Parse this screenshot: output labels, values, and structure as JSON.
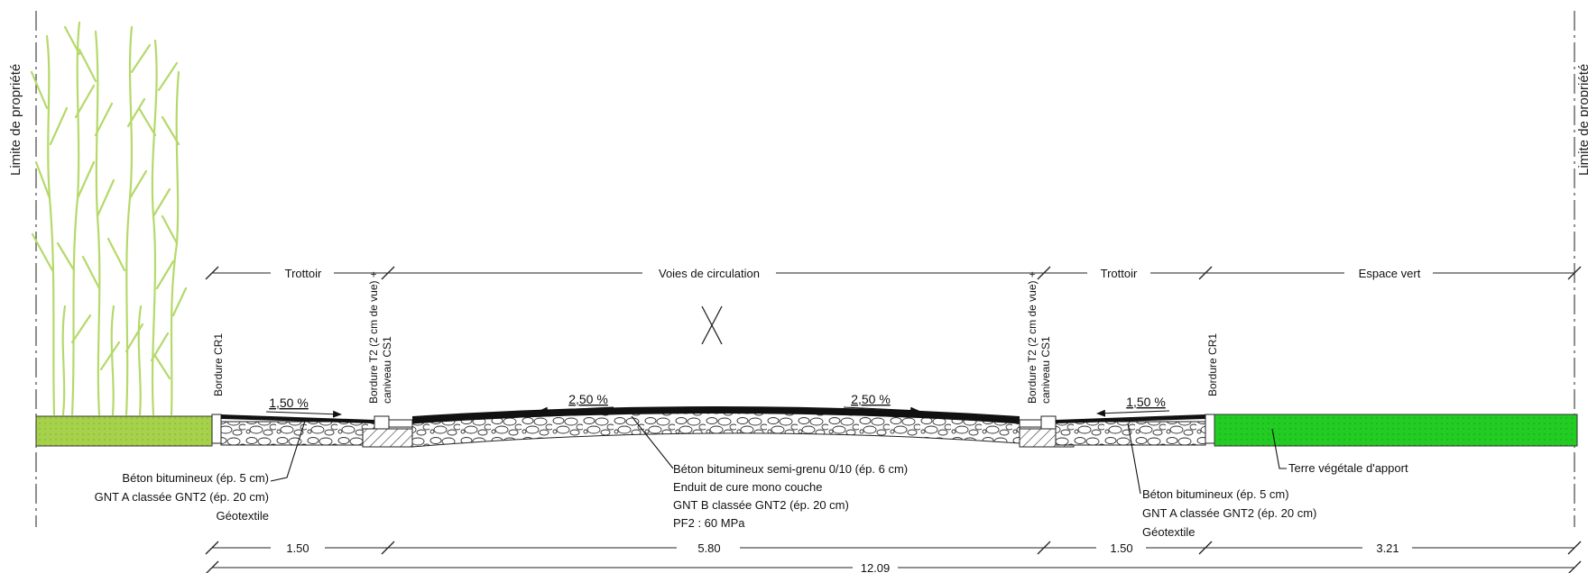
{
  "property_limit": {
    "left": "Limite de propriété",
    "right": "Limite de propriété"
  },
  "zones": {
    "sidewalk_left": "Trottoir",
    "lanes": "Voies de circulation",
    "sidewalk_right": "Trottoir",
    "green_space": "Espace vert"
  },
  "curbs": {
    "cr1_left": "Bordure CR1",
    "t2_left_line1": "Bordure T2 (2 cm de vue) +",
    "t2_left_line2": "caniveau CS1",
    "t2_right_line1": "Bordure T2 (2 cm de vue) +",
    "t2_right_line2": "caniveau CS1",
    "cr1_right": "Bordure CR1"
  },
  "slopes": {
    "sidewalk_left": "1,50 %",
    "lane_left": "2,50 %",
    "lane_right": "2,50 %",
    "sidewalk_right": "1,50 %"
  },
  "layers_left": [
    "Béton bitumineux (ép. 5 cm)",
    "GNT A classée GNT2 (ép. 20 cm)",
    "Géotextile"
  ],
  "layers_center": [
    "Béton bitumineux semi-grenu 0/10 (ép. 6 cm)",
    "Enduit de cure mono couche",
    "GNT B classée GNT2 (ép. 20 cm)",
    "PF2 : 60 MPa"
  ],
  "layers_right": [
    "Béton bitumineux (ép. 5 cm)",
    "GNT A classée GNT2 (ép. 20 cm)",
    "Géotextile"
  ],
  "topsoil": "Terre végétale d'apport",
  "dimensions": {
    "sidewalk_left": "1.50",
    "lanes": "5.80",
    "sidewalk_right": "1.50",
    "green_space": "3.21",
    "total": "12.09"
  },
  "colors": {
    "hedge": "#b5d96a",
    "hedge_soil": "#a6d14a",
    "green_space": "#22cc22",
    "asphalt": "#111111"
  }
}
